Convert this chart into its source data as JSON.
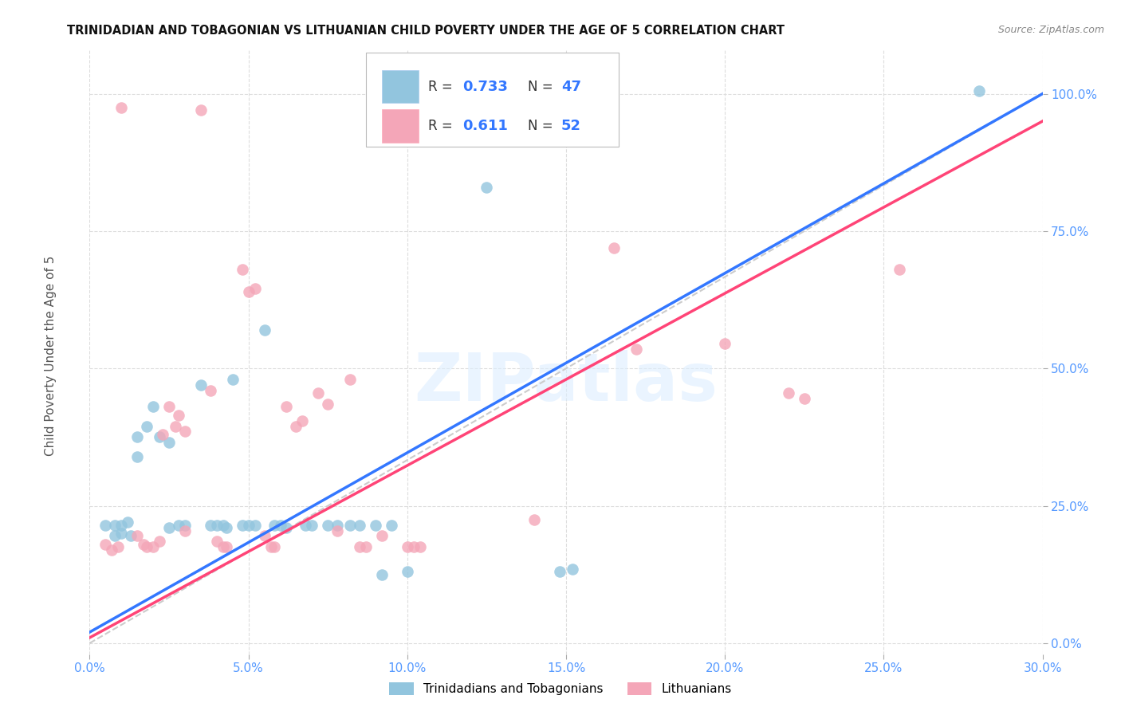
{
  "title": "TRINIDADIAN AND TOBAGONIAN VS LITHUANIAN CHILD POVERTY UNDER THE AGE OF 5 CORRELATION CHART",
  "source": "Source: ZipAtlas.com",
  "xlim": [
    0.0,
    0.3
  ],
  "ylim": [
    -0.02,
    1.08
  ],
  "ylabel": "Child Poverty Under the Age of 5",
  "legend_labels": [
    "Trinidadians and Tobagonians",
    "Lithuanians"
  ],
  "blue_color": "#92c5de",
  "pink_color": "#f4a6b8",
  "trendline_blue": "#3377ff",
  "trendline_pink": "#ff4477",
  "trendline_dashed_color": "#cccccc",
  "tick_color": "#5599ff",
  "title_color": "#111111",
  "ylabel_color": "#555555",
  "watermark": "ZIPatlas",
  "watermark_color": "#ddeeff",
  "blue_scatter": [
    [
      0.005,
      0.215
    ],
    [
      0.008,
      0.215
    ],
    [
      0.01,
      0.215
    ],
    [
      0.012,
      0.22
    ],
    [
      0.008,
      0.195
    ],
    [
      0.01,
      0.2
    ],
    [
      0.013,
      0.195
    ],
    [
      0.015,
      0.375
    ],
    [
      0.015,
      0.34
    ],
    [
      0.018,
      0.395
    ],
    [
      0.02,
      0.43
    ],
    [
      0.022,
      0.375
    ],
    [
      0.025,
      0.365
    ],
    [
      0.025,
      0.21
    ],
    [
      0.028,
      0.215
    ],
    [
      0.03,
      0.215
    ],
    [
      0.035,
      0.47
    ],
    [
      0.038,
      0.215
    ],
    [
      0.04,
      0.215
    ],
    [
      0.042,
      0.215
    ],
    [
      0.043,
      0.21
    ],
    [
      0.045,
      0.48
    ],
    [
      0.048,
      0.215
    ],
    [
      0.05,
      0.215
    ],
    [
      0.052,
      0.215
    ],
    [
      0.055,
      0.57
    ],
    [
      0.058,
      0.215
    ],
    [
      0.06,
      0.215
    ],
    [
      0.062,
      0.21
    ],
    [
      0.068,
      0.215
    ],
    [
      0.07,
      0.215
    ],
    [
      0.075,
      0.215
    ],
    [
      0.078,
      0.215
    ],
    [
      0.082,
      0.215
    ],
    [
      0.085,
      0.215
    ],
    [
      0.09,
      0.215
    ],
    [
      0.092,
      0.125
    ],
    [
      0.095,
      0.215
    ],
    [
      0.1,
      0.13
    ],
    [
      0.125,
      0.83
    ],
    [
      0.148,
      0.13
    ],
    [
      0.152,
      0.135
    ],
    [
      0.28,
      1.005
    ]
  ],
  "pink_scatter": [
    [
      0.005,
      0.18
    ],
    [
      0.007,
      0.17
    ],
    [
      0.009,
      0.175
    ],
    [
      0.01,
      0.975
    ],
    [
      0.015,
      0.195
    ],
    [
      0.017,
      0.18
    ],
    [
      0.018,
      0.175
    ],
    [
      0.02,
      0.175
    ],
    [
      0.022,
      0.185
    ],
    [
      0.023,
      0.38
    ],
    [
      0.025,
      0.43
    ],
    [
      0.027,
      0.395
    ],
    [
      0.028,
      0.415
    ],
    [
      0.03,
      0.385
    ],
    [
      0.03,
      0.205
    ],
    [
      0.035,
      0.97
    ],
    [
      0.038,
      0.46
    ],
    [
      0.04,
      0.185
    ],
    [
      0.042,
      0.175
    ],
    [
      0.043,
      0.175
    ],
    [
      0.048,
      0.68
    ],
    [
      0.05,
      0.64
    ],
    [
      0.052,
      0.645
    ],
    [
      0.055,
      0.195
    ],
    [
      0.057,
      0.175
    ],
    [
      0.058,
      0.175
    ],
    [
      0.062,
      0.43
    ],
    [
      0.065,
      0.395
    ],
    [
      0.067,
      0.405
    ],
    [
      0.072,
      0.455
    ],
    [
      0.075,
      0.435
    ],
    [
      0.078,
      0.205
    ],
    [
      0.082,
      0.48
    ],
    [
      0.085,
      0.175
    ],
    [
      0.087,
      0.175
    ],
    [
      0.092,
      0.195
    ],
    [
      0.1,
      0.175
    ],
    [
      0.102,
      0.175
    ],
    [
      0.104,
      0.175
    ],
    [
      0.14,
      0.225
    ],
    [
      0.165,
      0.72
    ],
    [
      0.172,
      0.535
    ],
    [
      0.2,
      0.545
    ],
    [
      0.22,
      0.455
    ],
    [
      0.225,
      0.445
    ],
    [
      0.255,
      0.68
    ]
  ],
  "blue_trendline_pts": [
    [
      0.0,
      0.02
    ],
    [
      0.3,
      1.0
    ]
  ],
  "pink_trendline_pts": [
    [
      0.0,
      0.01
    ],
    [
      0.3,
      0.95
    ]
  ]
}
